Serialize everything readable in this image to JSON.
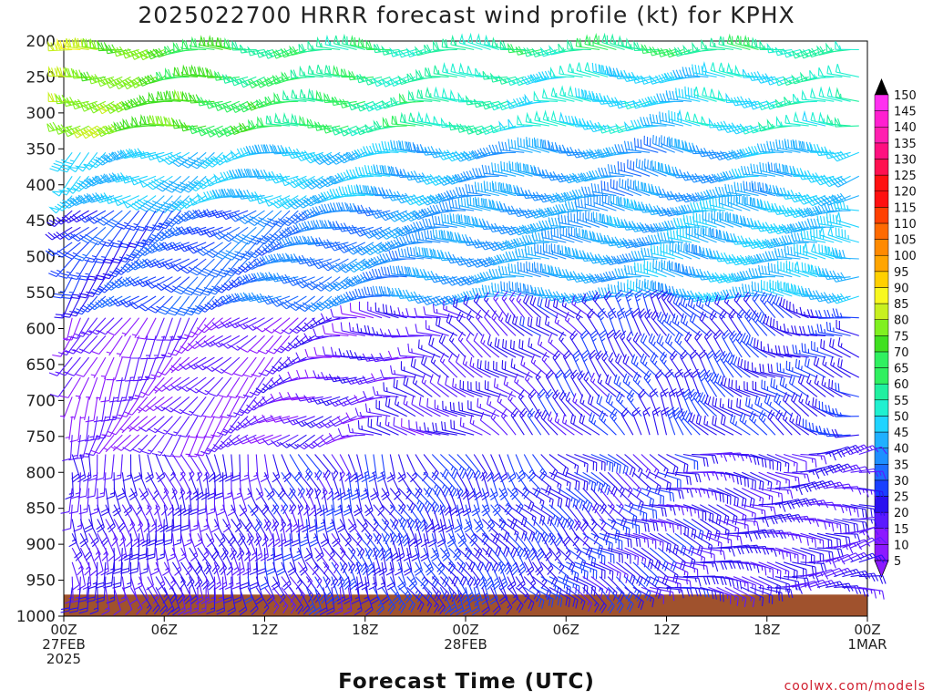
{
  "title": "2025022700 HRRR forecast wind profile (kt) for KPHX",
  "xlabel": "Forecast Time (UTC)",
  "credit": "coolwx.com/models",
  "colors": {
    "ground": "#a0522d",
    "scale": [
      "#8c1aff",
      "#5a1aff",
      "#2a10f0",
      "#1a40ff",
      "#1e6cff",
      "#1e90ff",
      "#20b0ff",
      "#20d4ff",
      "#20f0d0",
      "#20f0a0",
      "#30f060",
      "#40e020",
      "#80f020",
      "#c8f020",
      "#f8f820",
      "#ffd000",
      "#ffa500",
      "#ff8a00",
      "#ff6a00",
      "#ff4000",
      "#ff1010",
      "#ff1050",
      "#ff1080",
      "#ff20b0",
      "#ff20d0",
      "#ff30f0",
      "#ff40ff"
    ]
  },
  "chart_data": {
    "type": "wind-barb-time-height",
    "title": "2025022700 HRRR forecast wind profile (kt) for KPHX",
    "xlabel": "Forecast Time (UTC)",
    "ylabel": "",
    "pressure_levels": [
      200,
      250,
      300,
      350,
      400,
      450,
      500,
      550,
      600,
      650,
      700,
      750,
      800,
      850,
      900,
      950,
      1000
    ],
    "y_axis_range_hPa": [
      200,
      1000
    ],
    "x_axis_range_hours": [
      0,
      48
    ],
    "x_ticks": [
      {
        "hour": 0,
        "lines": [
          "00Z",
          "27FEB",
          "2025"
        ]
      },
      {
        "hour": 6,
        "lines": [
          "06Z"
        ]
      },
      {
        "hour": 12,
        "lines": [
          "12Z"
        ]
      },
      {
        "hour": 18,
        "lines": [
          "18Z"
        ]
      },
      {
        "hour": 24,
        "lines": [
          "00Z",
          "28FEB"
        ]
      },
      {
        "hour": 30,
        "lines": [
          "06Z"
        ]
      },
      {
        "hour": 36,
        "lines": [
          "12Z"
        ]
      },
      {
        "hour": 42,
        "lines": [
          "18Z"
        ]
      },
      {
        "hour": 48,
        "lines": [
          "00Z",
          "1MAR"
        ]
      }
    ],
    "colorbar_ticks_kt": [
      5,
      10,
      15,
      20,
      25,
      30,
      35,
      40,
      45,
      50,
      55,
      60,
      65,
      70,
      75,
      80,
      85,
      90,
      95,
      100,
      105,
      110,
      115,
      120,
      125,
      130,
      135,
      140,
      145,
      150
    ],
    "surface_pressure_hPa": 970,
    "barb_levels_hPa": [
      212,
      250,
      284,
      318,
      355,
      388,
      415,
      436,
      459,
      480,
      503,
      528,
      555,
      585,
      610,
      640,
      668,
      695,
      722,
      748,
      775,
      800,
      822,
      845,
      865,
      885,
      905,
      925,
      945,
      960
    ],
    "barb_hours": [
      0,
      0.5,
      1,
      1.5,
      2,
      2.5,
      3,
      3.5,
      4,
      4.5,
      5,
      5.5,
      6,
      6.5,
      7,
      7.5,
      8,
      8.5,
      9,
      9.5,
      10,
      10.5,
      11,
      11.5,
      12,
      12.5,
      13,
      13.5,
      14,
      14.5,
      15,
      15.5,
      16,
      16.5,
      17,
      17.5,
      18,
      18.5,
      19,
      19.5,
      20,
      20.5,
      21,
      21.5,
      22,
      22.5,
      23,
      23.5,
      24,
      24.5,
      25,
      25.5,
      26,
      26.5,
      27,
      27.5,
      28,
      28.5,
      29,
      29.5,
      30,
      30.5,
      31,
      31.5,
      32,
      32.5,
      33,
      33.5,
      34,
      34.5,
      35,
      35.5,
      36,
      36.5,
      37,
      37.5,
      38,
      38.5,
      39,
      39.5,
      40,
      40.5,
      41,
      41.5,
      42,
      42.5,
      43,
      43.5,
      44,
      44.5,
      45,
      45.5,
      46,
      46.5,
      47,
      47.5,
      48
    ],
    "wind_model_note": "speed_kt and direction estimated from barb appearance by pressure band",
    "wind_bands": [
      {
        "p_min": 200,
        "p_max": 240,
        "speed_kt": [
          80,
          60,
          55,
          60,
          55
        ],
        "dir_deg": [
          260,
          265,
          270,
          270,
          265
        ]
      },
      {
        "p_min": 240,
        "p_max": 330,
        "speed_kt": [
          78,
          62,
          55,
          45,
          55
        ],
        "dir_deg": [
          255,
          260,
          265,
          270,
          265
        ]
      },
      {
        "p_min": 330,
        "p_max": 420,
        "speed_kt": [
          45,
          45,
          40,
          35,
          45
        ],
        "dir_deg": [
          230,
          250,
          265,
          275,
          260
        ]
      },
      {
        "p_min": 420,
        "p_max": 560,
        "speed_kt": [
          22,
          30,
          38,
          40,
          45
        ],
        "dir_deg": [
          220,
          240,
          265,
          275,
          270
        ]
      },
      {
        "p_min": 560,
        "p_max": 760,
        "speed_kt": [
          10,
          12,
          15,
          22,
          20
        ],
        "dir_deg": [
          200,
          230,
          300,
          330,
          280
        ]
      },
      {
        "p_min": 760,
        "p_max": 960,
        "speed_kt": [
          15,
          18,
          22,
          18,
          15
        ],
        "dir_deg": [
          170,
          160,
          150,
          110,
          80
        ]
      }
    ]
  }
}
